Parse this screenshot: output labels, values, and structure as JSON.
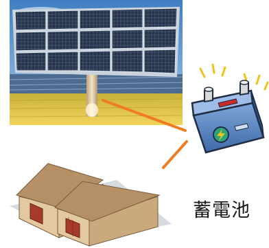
{
  "labels": {
    "battery": "蓄電池"
  },
  "icons": {
    "solar_panel": "solar-panel-photo",
    "battery": "battery-icon",
    "warehouse": "warehouse-icon"
  },
  "colors": {
    "connector": "#ee7d22",
    "sky": "#6fa6d8",
    "field": "#e6c63a",
    "panel": "#2c3a52",
    "battery_body": "#5f89c2",
    "battery_terminal": "#cc2b2b",
    "warehouse_roof": "#b59067",
    "warehouse_wall": "#e3c9a2",
    "warehouse_door": "#a63b2a"
  }
}
